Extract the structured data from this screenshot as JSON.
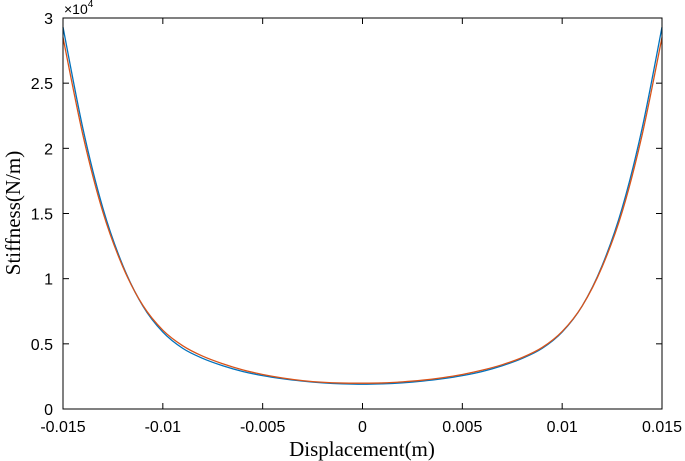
{
  "chart_data": {
    "type": "line",
    "title": "",
    "xlabel": "Displacement(m)",
    "ylabel": "Stiffness(N/m)",
    "xlim": [
      -0.015,
      0.015
    ],
    "ylim": [
      0,
      30000
    ],
    "xticks": [
      -0.015,
      -0.01,
      -0.005,
      0,
      0.005,
      0.01,
      0.015
    ],
    "xtick_labels": [
      "-0.015",
      "-0.01",
      "-0.005",
      "0",
      "0.005",
      "0.01",
      "0.015"
    ],
    "yticks": [
      0,
      5000,
      10000,
      15000,
      20000,
      25000,
      30000
    ],
    "ytick_labels": [
      "0",
      "0.5",
      "1",
      "1.5",
      "2",
      "2.5",
      "3"
    ],
    "y_multiplier": {
      "base": "×10",
      "exponent": "4"
    },
    "grid": false,
    "legend": "none",
    "series": [
      {
        "color": "#0072BD",
        "x": [
          -0.015,
          -0.014,
          -0.013,
          -0.012,
          -0.011,
          -0.01,
          -0.009,
          -0.008,
          -0.007,
          -0.006,
          -0.005,
          -0.004,
          -0.003,
          -0.002,
          -0.001,
          0,
          0.001,
          0.002,
          0.003,
          0.004,
          0.005,
          0.006,
          0.007,
          0.008,
          0.009,
          0.01,
          0.011,
          0.012,
          0.013,
          0.014,
          0.015
        ],
        "y": [
          29300,
          21500,
          15400,
          11000,
          7900,
          5900,
          4650,
          3880,
          3320,
          2880,
          2560,
          2320,
          2140,
          2010,
          1930,
          1900,
          1930,
          2010,
          2140,
          2320,
          2560,
          2880,
          3320,
          3880,
          4650,
          5900,
          7900,
          11000,
          15400,
          21500,
          29300
        ]
      },
      {
        "color": "#D95319",
        "x": [
          -0.015,
          -0.014,
          -0.013,
          -0.012,
          -0.011,
          -0.01,
          -0.009,
          -0.008,
          -0.007,
          -0.006,
          -0.005,
          -0.004,
          -0.003,
          -0.002,
          -0.001,
          0,
          0.001,
          0.002,
          0.003,
          0.004,
          0.005,
          0.006,
          0.007,
          0.008,
          0.009,
          0.01,
          0.011,
          0.012,
          0.013,
          0.014,
          0.015
        ],
        "y": [
          28500,
          21000,
          15100,
          10900,
          7950,
          6050,
          4850,
          4050,
          3470,
          3000,
          2650,
          2380,
          2180,
          2050,
          1990,
          1980,
          2000,
          2080,
          2210,
          2400,
          2650,
          2980,
          3400,
          3950,
          4720,
          5950,
          7900,
          10900,
          15100,
          21000,
          28500
        ]
      }
    ]
  }
}
